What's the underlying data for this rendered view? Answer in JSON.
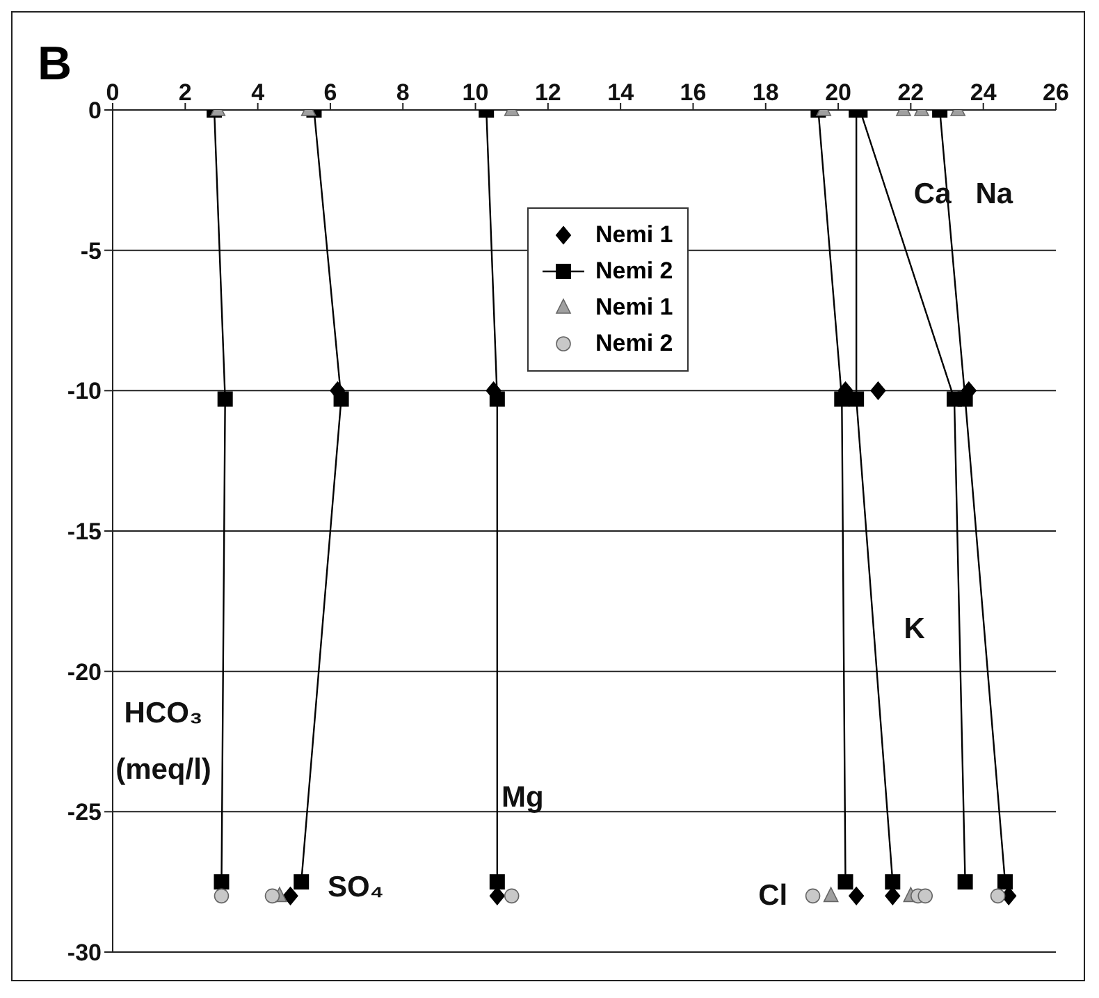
{
  "chart_data": {
    "type": "scatter",
    "title": "B",
    "xlim": [
      0,
      26
    ],
    "xticks": [
      0,
      2,
      4,
      6,
      8,
      10,
      12,
      14,
      16,
      18,
      20,
      22,
      24,
      26
    ],
    "ylim": [
      -30,
      0
    ],
    "yticks": [
      0,
      -5,
      -10,
      -15,
      -20,
      -25,
      -30
    ],
    "grid": "y",
    "legend": "top",
    "series": [
      {
        "name": "Nemi 1",
        "marker": "diamond",
        "color": "#000000",
        "x": [
          6.2,
          10.5,
          20.2,
          21.1,
          23.6,
          4.9,
          10.6,
          20.5,
          21.5,
          24.7
        ],
        "values": [
          -10,
          -10,
          -10,
          -10,
          -10,
          -28,
          -28,
          -28,
          -28,
          -28
        ]
      },
      {
        "name": "Nemi 2",
        "type": "line",
        "marker": "square",
        "line_style": "solid",
        "color": "#000000",
        "x": [
          2.8,
          3.1,
          3.0,
          null,
          5.55,
          6.3,
          5.2,
          null,
          10.3,
          10.6,
          10.6,
          null,
          19.45,
          20.1,
          20.2,
          null,
          20.5,
          20.5,
          21.5,
          null,
          20.6,
          23.2,
          23.5,
          null,
          22.8,
          23.5,
          24.6
        ],
        "values": [
          0,
          -10.3,
          -27.5,
          null,
          0,
          -10.3,
          -27.5,
          null,
          0,
          -10.3,
          -27.5,
          null,
          0,
          -10.3,
          -27.5,
          null,
          0,
          -10.3,
          -27.5,
          null,
          0,
          -10.3,
          -27.5,
          null,
          0,
          -10.3,
          -27.5
        ]
      },
      {
        "name": "Nemi 1",
        "marker": "triangle",
        "color": "#a0a0a0",
        "x": [
          2.9,
          5.4,
          11.0,
          19.6,
          21.8,
          22.3,
          23.3,
          4.6,
          19.8,
          22.0
        ],
        "values": [
          0,
          0,
          0,
          0,
          0,
          0,
          0,
          -28,
          -28,
          -28
        ]
      },
      {
        "name": "Nemi 2",
        "marker": "circle",
        "color": "#c8c8c8",
        "x": [
          3.0,
          4.4,
          11.0,
          19.3,
          22.2,
          22.4,
          24.4
        ],
        "values": [
          -28,
          -28,
          -28,
          -28,
          -28,
          -28,
          -28
        ]
      }
    ],
    "annotations": [
      "Ca",
      "Na",
      "K",
      "HCO₃",
      "(meq/l)",
      "Mg",
      "SO₄",
      "Cl"
    ]
  }
}
